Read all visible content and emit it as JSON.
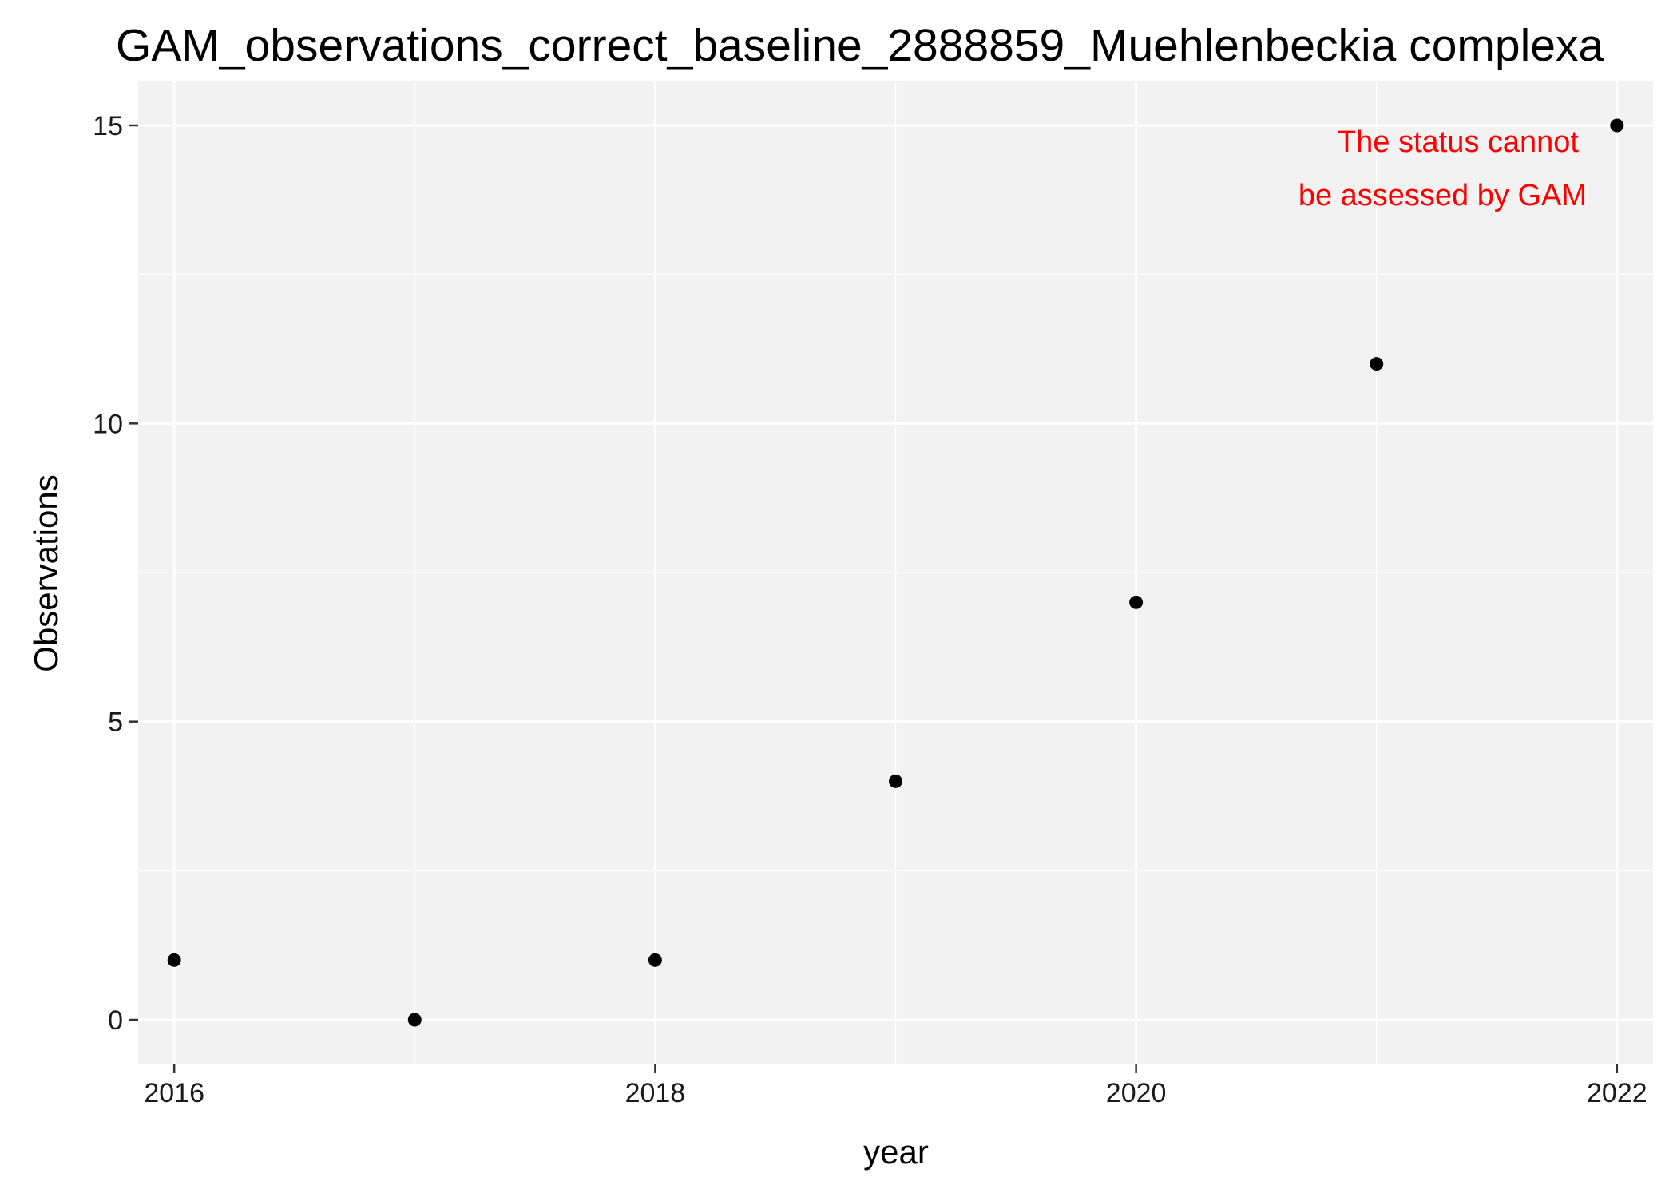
{
  "chart_data": {
    "type": "scatter",
    "title": "GAM_observations_correct_baseline_2888859_Muehlenbeckia complexa",
    "xlabel": "year",
    "ylabel": "Observations",
    "x": [
      2016,
      2017,
      2018,
      2019,
      2020,
      2021,
      2022
    ],
    "y": [
      1,
      0,
      1,
      4,
      7,
      11,
      15
    ],
    "xlim": [
      2015.85,
      2022.15
    ],
    "ylim": [
      -0.75,
      15.75
    ],
    "x_ticks": [
      2016,
      2018,
      2020,
      2022
    ],
    "x_tick_labels": [
      "2016",
      "2018",
      "2020",
      "2022"
    ],
    "y_ticks": [
      0,
      5,
      10,
      15
    ],
    "y_tick_labels": [
      "0",
      "5",
      "10",
      "15"
    ],
    "grid": true,
    "annotation": {
      "lines": [
        "The status cannot",
        "be assessed by GAM"
      ],
      "color": "#ff0000"
    },
    "colors": {
      "panel_background": "#f2f2f2",
      "grid": "#ffffff",
      "point": "#000000"
    }
  }
}
